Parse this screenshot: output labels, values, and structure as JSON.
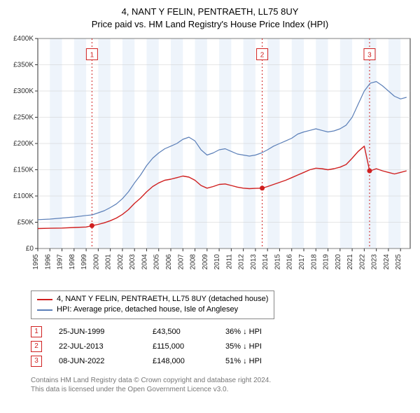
{
  "title_line1": "4, NANT Y FELIN, PENTRAETH, LL75 8UY",
  "title_line2": "Price paid vs. HM Land Registry's House Price Index (HPI)",
  "chart": {
    "type": "line",
    "plot_bg": "#ffffff",
    "band_bg": "#eef4fb",
    "axis_color": "#333333",
    "grid_color": "#cccccc",
    "tick_font_size": 10,
    "x_years": [
      1995,
      1996,
      1997,
      1998,
      1999,
      2000,
      2001,
      2002,
      2003,
      2004,
      2005,
      2006,
      2007,
      2008,
      2009,
      2010,
      2011,
      2012,
      2013,
      2014,
      2015,
      2016,
      2017,
      2018,
      2019,
      2020,
      2021,
      2022,
      2023,
      2024,
      2025
    ],
    "xlim": [
      1995,
      2025.8
    ],
    "ylim": [
      0,
      400000
    ],
    "ytick_step": 50000,
    "ytick_labels": [
      "£0",
      "£50K",
      "£100K",
      "£150K",
      "£200K",
      "£250K",
      "£300K",
      "£350K",
      "£400K"
    ],
    "series": [
      {
        "name": "hpi",
        "color": "#5b7fb8",
        "width": 1.2,
        "points": [
          [
            1995,
            55000
          ],
          [
            1996,
            56000
          ],
          [
            1997,
            58000
          ],
          [
            1998,
            60000
          ],
          [
            1999,
            63000
          ],
          [
            1999.5,
            64000
          ],
          [
            2000,
            68000
          ],
          [
            2000.5,
            72000
          ],
          [
            2001,
            78000
          ],
          [
            2001.5,
            85000
          ],
          [
            2002,
            95000
          ],
          [
            2002.5,
            108000
          ],
          [
            2003,
            125000
          ],
          [
            2003.5,
            140000
          ],
          [
            2004,
            158000
          ],
          [
            2004.5,
            172000
          ],
          [
            2005,
            182000
          ],
          [
            2005.5,
            190000
          ],
          [
            2006,
            195000
          ],
          [
            2006.5,
            200000
          ],
          [
            2007,
            208000
          ],
          [
            2007.5,
            212000
          ],
          [
            2008,
            205000
          ],
          [
            2008.5,
            188000
          ],
          [
            2009,
            178000
          ],
          [
            2009.5,
            182000
          ],
          [
            2010,
            188000
          ],
          [
            2010.5,
            190000
          ],
          [
            2011,
            185000
          ],
          [
            2011.5,
            180000
          ],
          [
            2012,
            178000
          ],
          [
            2012.5,
            176000
          ],
          [
            2013,
            178000
          ],
          [
            2013.5,
            182000
          ],
          [
            2014,
            188000
          ],
          [
            2014.5,
            195000
          ],
          [
            2015,
            200000
          ],
          [
            2015.5,
            205000
          ],
          [
            2016,
            210000
          ],
          [
            2016.5,
            218000
          ],
          [
            2017,
            222000
          ],
          [
            2017.5,
            225000
          ],
          [
            2018,
            228000
          ],
          [
            2018.5,
            225000
          ],
          [
            2019,
            222000
          ],
          [
            2019.5,
            224000
          ],
          [
            2020,
            228000
          ],
          [
            2020.5,
            235000
          ],
          [
            2021,
            250000
          ],
          [
            2021.5,
            275000
          ],
          [
            2022,
            300000
          ],
          [
            2022.5,
            315000
          ],
          [
            2023,
            318000
          ],
          [
            2023.5,
            310000
          ],
          [
            2024,
            300000
          ],
          [
            2024.5,
            290000
          ],
          [
            2025,
            285000
          ],
          [
            2025.5,
            288000
          ]
        ]
      },
      {
        "name": "price_paid",
        "color": "#d02020",
        "width": 1.4,
        "points": [
          [
            1995,
            38000
          ],
          [
            1996,
            38500
          ],
          [
            1997,
            39000
          ],
          [
            1998,
            40000
          ],
          [
            1999,
            41000
          ],
          [
            1999.48,
            43500
          ],
          [
            2000,
            46000
          ],
          [
            2000.5,
            49000
          ],
          [
            2001,
            53000
          ],
          [
            2001.5,
            58000
          ],
          [
            2002,
            65000
          ],
          [
            2002.5,
            74000
          ],
          [
            2003,
            86000
          ],
          [
            2003.5,
            96000
          ],
          [
            2004,
            108000
          ],
          [
            2004.5,
            118000
          ],
          [
            2005,
            125000
          ],
          [
            2005.5,
            130000
          ],
          [
            2006,
            132000
          ],
          [
            2006.5,
            135000
          ],
          [
            2007,
            138000
          ],
          [
            2007.5,
            136000
          ],
          [
            2008,
            130000
          ],
          [
            2008.5,
            120000
          ],
          [
            2009,
            115000
          ],
          [
            2009.5,
            118000
          ],
          [
            2010,
            122000
          ],
          [
            2010.5,
            123000
          ],
          [
            2011,
            120000
          ],
          [
            2011.5,
            117000
          ],
          [
            2012,
            115000
          ],
          [
            2012.5,
            114000
          ],
          [
            2013,
            114500
          ],
          [
            2013.56,
            115000
          ],
          [
            2014,
            118000
          ],
          [
            2014.5,
            122000
          ],
          [
            2015,
            126000
          ],
          [
            2015.5,
            130000
          ],
          [
            2016,
            135000
          ],
          [
            2016.5,
            140000
          ],
          [
            2017,
            145000
          ],
          [
            2017.5,
            150000
          ],
          [
            2018,
            153000
          ],
          [
            2018.5,
            152000
          ],
          [
            2019,
            150000
          ],
          [
            2019.5,
            152000
          ],
          [
            2020,
            155000
          ],
          [
            2020.5,
            160000
          ],
          [
            2021,
            172000
          ],
          [
            2021.5,
            185000
          ],
          [
            2022,
            195000
          ],
          [
            2022.44,
            148000
          ],
          [
            2022.5,
            148000
          ],
          [
            2023,
            152000
          ],
          [
            2023.5,
            148000
          ],
          [
            2024,
            145000
          ],
          [
            2024.5,
            142000
          ],
          [
            2025,
            145000
          ],
          [
            2025.5,
            148000
          ]
        ]
      }
    ],
    "markers": [
      {
        "n": "1",
        "x": 1999.48,
        "y": 43500,
        "color": "#d02020",
        "marker_y": 370000
      },
      {
        "n": "2",
        "x": 2013.56,
        "y": 115000,
        "color": "#d02020",
        "marker_y": 370000
      },
      {
        "n": "3",
        "x": 2022.44,
        "y": 148000,
        "color": "#d02020",
        "marker_y": 370000
      }
    ]
  },
  "legend": {
    "series1_label": "4, NANT Y FELIN, PENTRAETH, LL75 8UY (detached house)",
    "series1_color": "#d02020",
    "series2_label": "HPI: Average price, detached house, Isle of Anglesey",
    "series2_color": "#5b7fb8"
  },
  "events": [
    {
      "n": "1",
      "date": "25-JUN-1999",
      "price": "£43,500",
      "delta": "36% ↓ HPI",
      "color": "#d02020"
    },
    {
      "n": "2",
      "date": "22-JUL-2013",
      "price": "£115,000",
      "delta": "35% ↓ HPI",
      "color": "#d02020"
    },
    {
      "n": "3",
      "date": "08-JUN-2022",
      "price": "£148,000",
      "delta": "51% ↓ HPI",
      "color": "#d02020"
    }
  ],
  "footer_line1": "Contains HM Land Registry data © Crown copyright and database right 2024.",
  "footer_line2": "This data is licensed under the Open Government Licence v3.0."
}
